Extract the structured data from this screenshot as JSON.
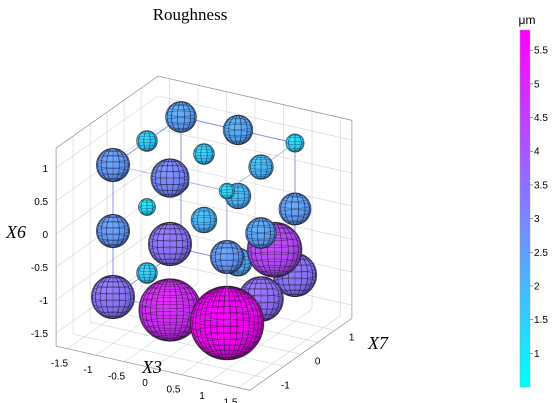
{
  "chart_data": {
    "type": "scatter3d",
    "title": "Roughness",
    "axes": {
      "x": {
        "label": "X3",
        "ticks": [
          "-1.5",
          "-1",
          "-0.5",
          "0",
          "0.5",
          "1",
          "1.5"
        ]
      },
      "y": {
        "label": "X7",
        "ticks": [
          "-1",
          "0",
          "1"
        ]
      },
      "z": {
        "label": "X6",
        "ticks": [
          "-1.5",
          "-1",
          "-0.5",
          "0",
          "0.5",
          "1"
        ]
      }
    },
    "colorbar": {
      "unit": "μm",
      "range": [
        0.5,
        5.8
      ],
      "ticks": [
        "1",
        "1.5",
        "2",
        "2.5",
        "3",
        "3.5",
        "4",
        "4.5",
        "5",
        "5.5"
      ],
      "colormap": [
        "#00ffff",
        "#ff00ff"
      ]
    },
    "grid": true,
    "colors": {
      "low": "#00ffff",
      "high": "#ff00ff",
      "box_edge": "#6f7bd6",
      "grid": "#d4d4d4"
    },
    "points": [
      {
        "x": -1,
        "y": 1,
        "z": 1,
        "value": 2.4
      },
      {
        "x": 0,
        "y": 1,
        "z": 1,
        "value": 2.3
      },
      {
        "x": 1,
        "y": 1,
        "z": 1,
        "value": 1.4
      },
      {
        "x": -1,
        "y": 0,
        "z": 1,
        "value": 1.6
      },
      {
        "x": 0,
        "y": 0,
        "z": 1,
        "value": 1.6
      },
      {
        "x": 1,
        "y": 0,
        "z": 1,
        "value": 1.9
      },
      {
        "x": -1,
        "y": -1,
        "z": 1,
        "value": 2.6
      },
      {
        "x": 0,
        "y": -1,
        "z": 1,
        "value": 3.0
      },
      {
        "x": 1,
        "y": -1,
        "z": 1,
        "value": 1.2
      },
      {
        "x": -1,
        "y": 1,
        "z": 0,
        "value": 1.2
      },
      {
        "x": 0,
        "y": 1,
        "z": 0,
        "value": 2.0
      },
      {
        "x": 1,
        "y": 1,
        "z": 0,
        "value": 2.5
      },
      {
        "x": -1,
        "y": 0,
        "z": 0,
        "value": 1.3
      },
      {
        "x": 0,
        "y": 0,
        "z": 0,
        "value": 2.0
      },
      {
        "x": 1,
        "y": 0,
        "z": 0,
        "value": 2.4
      },
      {
        "x": -1,
        "y": -1,
        "z": 0,
        "value": 2.6
      },
      {
        "x": 0,
        "y": -1,
        "z": 0,
        "value": 3.4
      },
      {
        "x": 1,
        "y": -1,
        "z": 0,
        "value": 2.6
      },
      {
        "x": -1,
        "y": 1,
        "z": -1,
        "value": 1.0
      },
      {
        "x": 0,
        "y": 1,
        "z": -1,
        "value": 2.2
      },
      {
        "x": 1,
        "y": 1,
        "z": -1,
        "value": 3.4
      },
      {
        "x": -1,
        "y": 0,
        "z": -1,
        "value": 1.6
      },
      {
        "x": 1,
        "y": 0.4,
        "z": -0.4,
        "value": 4.3
      },
      {
        "x": 1,
        "y": 0,
        "z": -1,
        "value": 3.5
      },
      {
        "x": -1,
        "y": -1,
        "z": -1,
        "value": 3.4
      },
      {
        "x": 0,
        "y": -1,
        "z": -1,
        "value": 4.9
      },
      {
        "x": 1,
        "y": -1,
        "z": -1,
        "value": 5.8
      }
    ]
  }
}
